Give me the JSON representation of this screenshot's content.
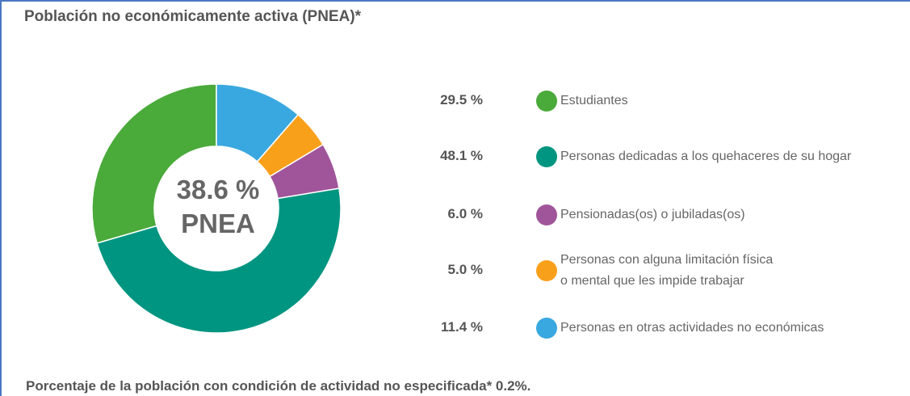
{
  "chart_data": {
    "type": "pie",
    "title": "Población no económicamente activa (PNEA)*",
    "categories": [
      "Estudiantes",
      "Personas dedicadas a los quehaceres de su hogar",
      "Pensionadas(os) o jubiladas(os)",
      "Personas con alguna limitación física\no mental que les impide trabajar",
      "Personas en otras actividades no económicas"
    ],
    "values": [
      29.5,
      48.1,
      6.0,
      5.0,
      11.4
    ],
    "value_labels": [
      "29.5 %",
      "48.1 %",
      "6.0 %",
      "5.0 %",
      "11.4 %"
    ],
    "colors": [
      "#4aaa3a",
      "#009580",
      "#a0559a",
      "#f9a01b",
      "#3aa8e0"
    ],
    "annotations": [
      "38.6 %",
      "PNEA"
    ],
    "footnote": "Porcentaje de la población con condición de actividad no especificada* 0.2%."
  }
}
